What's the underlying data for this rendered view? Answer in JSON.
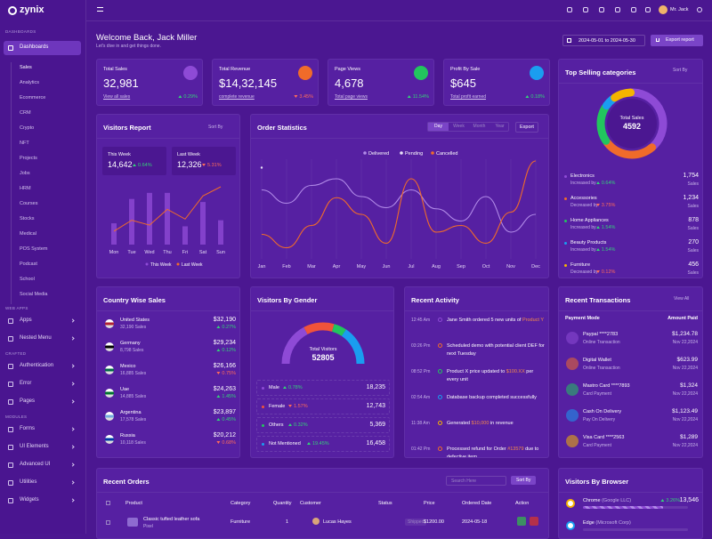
{
  "sidebar": {
    "brand": "zynix",
    "groups": [
      {
        "label": "DASHBOARDS",
        "items": [
          {
            "name": "Dashboards",
            "children": [
              "Sales",
              "Analytics",
              "Ecommerce",
              "CRM",
              "Crypto",
              "NFT",
              "Projects",
              "Jobs",
              "HRM",
              "Courses",
              "Stocks",
              "Medical",
              "POS System",
              "Podcast",
              "School",
              "Social Media"
            ]
          }
        ]
      },
      {
        "label": "WEB APPS",
        "items": [
          {
            "name": "Apps"
          },
          {
            "name": "Nested Menu"
          }
        ]
      },
      {
        "label": "CRAFTED",
        "items": [
          {
            "name": "Authentication"
          },
          {
            "name": "Error"
          },
          {
            "name": "Pages"
          }
        ]
      },
      {
        "label": "MODULES",
        "items": [
          {
            "name": "Forms"
          },
          {
            "name": "UI Elements"
          },
          {
            "name": "Advanced UI"
          },
          {
            "name": "Utilities"
          },
          {
            "name": "Widgets"
          }
        ]
      }
    ]
  },
  "header": {
    "user": "Mr. Jack",
    "title": "Welcome Back, Jack Miller",
    "subtitle": "Let's dive in and get things done.",
    "date_range": "2024-05-01 to 2024-05-30",
    "export": "Export report"
  },
  "stats": [
    {
      "label": "Total Sales",
      "value": "32,981",
      "link": "View all sales",
      "change": "0.29%",
      "up": true,
      "color": "#8e4ad6"
    },
    {
      "label": "Total Revenue",
      "value": "$14,32,145",
      "link": "complete revenue",
      "change": "3.45%",
      "up": false,
      "color": "#f06b2a"
    },
    {
      "label": "Page Views",
      "value": "4,678",
      "link": "Total page views",
      "change": "11.54%",
      "up": true,
      "color": "#22c55e"
    },
    {
      "label": "Profit By Sale",
      "value": "$645",
      "link": "Total profit earned",
      "change": "0.18%",
      "up": true,
      "color": "#1a9df0"
    }
  ],
  "top_selling": {
    "title": "Top Selling categories",
    "sort": "Sort By",
    "center_label": "Total Sales",
    "total": 4592,
    "unit": "Sales",
    "names": [
      "Electronics",
      "Accessories",
      "Home Appliances",
      "Beauty Products",
      "Furniture"
    ],
    "trends": [
      "Increased by",
      "Decreased by",
      "Increased by",
      "Increased by",
      "Decreased by"
    ],
    "changes": [
      "0.64%",
      "3.75%",
      "1.54%",
      "1.54%",
      "0.12%"
    ],
    "up": [
      true,
      false,
      true,
      true,
      false
    ],
    "values": [
      1754,
      1234,
      878,
      270,
      456
    ],
    "value_labels": [
      "1,754",
      "1,234",
      "878",
      "270",
      "456"
    ],
    "colors": [
      "#8e4ad6",
      "#f06b2a",
      "#22c55e",
      "#1a9df0",
      "#f5b400"
    ]
  },
  "visitors_report": {
    "title": "Visitors Report",
    "sort": "Sort By",
    "this_week": {
      "label": "This Week",
      "value": "14,642",
      "change": "0.64%",
      "up": true
    },
    "last_week": {
      "label": "Last Week",
      "value": "12,326",
      "change": "5.31%",
      "up": false
    },
    "categories": [
      "Mon",
      "Tue",
      "Wed",
      "Thu",
      "Fri",
      "Sat",
      "Sun"
    ],
    "series": [
      {
        "name": "This Week",
        "color": "#8e4ad6",
        "values": [
          35,
          75,
          85,
          85,
          30,
          70,
          40
        ]
      },
      {
        "name": "Last Week",
        "color": "#f06b2a",
        "values": [
          22,
          40,
          32,
          58,
          42,
          80,
          95
        ]
      }
    ]
  },
  "order_stats": {
    "title": "Order Statistics",
    "tabs": [
      "Day",
      "Week",
      "Month",
      "Year"
    ],
    "export": "Export",
    "categories": [
      "Jan",
      "Feb",
      "Mar",
      "Apr",
      "May",
      "Jun",
      "Jul",
      "Aug",
      "Sep",
      "Oct",
      "Nov",
      "Dec"
    ],
    "series": [
      {
        "name": "Delivered",
        "color": "#b18ae8",
        "values": [
          62,
          50,
          66,
          72,
          56,
          46,
          62,
          45,
          34,
          56,
          24,
          40
        ]
      },
      {
        "name": "Pending",
        "color": "#e9e1f7",
        "values": [
          82,
          null,
          null,
          null,
          null,
          null,
          null,
          null,
          null,
          null,
          null,
          null
        ]
      },
      {
        "name": "Cancelled",
        "color": "#f06b2a",
        "values": [
          22,
          10,
          30,
          55,
          40,
          14,
          72,
          24,
          30,
          14,
          42,
          88
        ]
      }
    ]
  },
  "country_sales": {
    "title": "Country Wise Sales",
    "rows": [
      {
        "country": "United States",
        "sales": "32,190 Sales",
        "amount": "$32,190",
        "change": "0.27%",
        "up": true
      },
      {
        "country": "Germany",
        "sales": "8,798 Sales",
        "amount": "$29,234",
        "change": "0.12%",
        "up": true
      },
      {
        "country": "Mexico",
        "sales": "16,885 Sales",
        "amount": "$26,166",
        "change": "0.75%",
        "up": false
      },
      {
        "country": "Uae",
        "sales": "14,885 Sales",
        "amount": "$24,263",
        "change": "1.45%",
        "up": true
      },
      {
        "country": "Argentina",
        "sales": "17,578 Sales",
        "amount": "$23,897",
        "change": "0.45%",
        "up": true
      },
      {
        "country": "Russia",
        "sales": "10,118 Sales",
        "amount": "$20,212",
        "change": "0.68%",
        "up": false
      }
    ]
  },
  "gender": {
    "title": "Visitors By Gender",
    "center_label": "Total Visitors",
    "total": 52805,
    "names": [
      "Male",
      "Female",
      "Others",
      "Not Mentioned"
    ],
    "changes": [
      "0.78%",
      "1.57%",
      "0.32%",
      "19.45%"
    ],
    "up": [
      true,
      false,
      true,
      true
    ],
    "values": [
      18235,
      12743,
      5369,
      16458
    ],
    "value_labels": [
      "18,235",
      "12,743",
      "5,369",
      "16,458"
    ],
    "colors": [
      "#8e4ad6",
      "#f0533a",
      "#22c55e",
      "#1a9df0"
    ]
  },
  "activity": {
    "title": "Recent Activity",
    "items": [
      {
        "time": "12:45 Am",
        "text": "Jane Smith ordered 5 new units of",
        "highlight": "Product Y",
        "after": ""
      },
      {
        "time": "03:26 Pm",
        "text": "Scheduled demo with potential client DEF for next Tuesday",
        "highlight": "",
        "after": ""
      },
      {
        "time": "08:52 Pm",
        "text": "Product X price updated to",
        "highlight": "$100.XX",
        "after": "per every unit"
      },
      {
        "time": "02:54 Am",
        "text": "Database backup completed successfully",
        "highlight": "",
        "after": ""
      },
      {
        "time": "11:38 Am",
        "text": "Generated",
        "highlight": "$10,000",
        "after": "in revenue"
      },
      {
        "time": "01:42 Pm",
        "text": "Processed refund for Order",
        "highlight": "#13579",
        "after": "due to defective item"
      }
    ]
  },
  "transactions": {
    "title": "Recent Transactions",
    "view_all": "View All",
    "columns": [
      "Payment Mode",
      "Amount Paid"
    ],
    "rows": [
      {
        "name": "Paypal ****2783",
        "mode": "Online Transaction",
        "amount": "$1,234.78",
        "date": "Nov 22,2024",
        "color": "#8e4ad6"
      },
      {
        "name": "Digital Wallet",
        "mode": "Online Transaction",
        "amount": "$623.99",
        "date": "Nov 22,2024",
        "color": "#f06b2a"
      },
      {
        "name": "Mastro Card ****7893",
        "mode": "Card Payment",
        "amount": "$1,324",
        "date": "Nov 22,2024",
        "color": "#22c55e"
      },
      {
        "name": "Cash On Delivery",
        "mode": "Pay On Delivery",
        "amount": "$1,123.49",
        "date": "Nov 22,2024",
        "color": "#1a9df0"
      },
      {
        "name": "Visa Card ****2563",
        "mode": "Card Payment",
        "amount": "$1,289",
        "date": "Nov 22,2024",
        "color": "#f5b400"
      }
    ]
  },
  "orders": {
    "title": "Recent Orders",
    "search": "Search Here",
    "sort": "Sort By",
    "columns": [
      "Product",
      "Category",
      "Quantity",
      "Customer",
      "Status",
      "Price",
      "Ordered Date",
      "Action"
    ],
    "rows": [
      {
        "product": "Classic tufted leather sofa",
        "brand": "Pixel",
        "category": "Furniture",
        "quantity": "1",
        "customer": "Lucas Hayes",
        "status": "Shipped",
        "price": "$1200.00",
        "date": "2024-05-18"
      }
    ]
  },
  "browsers": {
    "title": "Visitors By Browser",
    "rows": [
      {
        "name": "Chrome",
        "company": "(Google LLC)",
        "change": "3.26%",
        "value": "13,546"
      },
      {
        "name": "Edge",
        "company": "(Microsoft Corp)",
        "change": "",
        "value": ""
      }
    ]
  }
}
